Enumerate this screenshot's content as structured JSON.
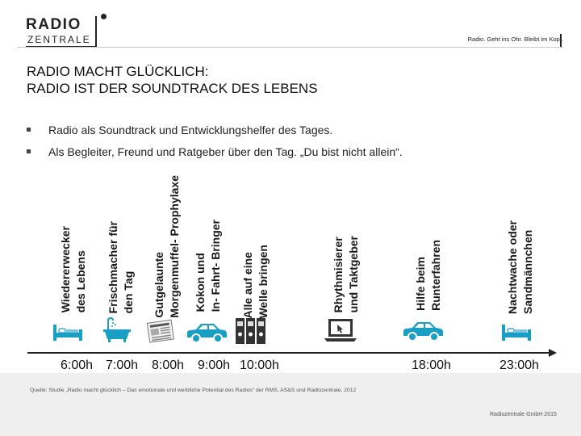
{
  "header": {
    "logo_top": "RADIO",
    "logo_bottom": "ZENTRALE",
    "tagline": "Radio. Geht ins Ohr. Bleibt im Kopf."
  },
  "title": {
    "line1": "RADIO MACHT GLÜCKLICH:",
    "line2": "RADIO IST DER SOUNDTRACK DES LEBENS"
  },
  "bullets": [
    "Radio als Soundtrack und Entwicklungshelfer des Tages.",
    "Als Begleiter, Freund und Ratgeber über den Tag. „Du bist nicht allein“."
  ],
  "timeline": {
    "labels": [
      "Wiedererwecker des Lebens",
      "Frischmacher für den Tag",
      "Gutgelaunte Morgenmuffel- Prophylaxe",
      "Kokon und In- Fahrt- Bringer",
      "Alle auf eine Welle bringen",
      "Rhythmisierer und Taktgeber",
      "Hilfe beim Runterfahren",
      "Nachtwache oder Sandmännchen"
    ],
    "label_lines": [
      [
        "Wiedererwecker",
        "des Lebens"
      ],
      [
        "Frischmacher für",
        "den Tag"
      ],
      [
        "Gutgelaunte",
        "Morgenmuffel- Prophylaxe"
      ],
      [
        "Kokon und",
        "In- Fahrt- Bringer"
      ],
      [
        "Alle auf eine",
        "Welle bringen"
      ],
      [
        "Rhythmisierer",
        "und Taktgeber"
      ],
      [
        "Hilfe beim",
        "Runterfahren"
      ],
      [
        "Nachtwache oder",
        "Sandmännchen"
      ]
    ],
    "times": [
      "6:00h",
      "7:00h",
      "8:00h",
      "9:00h",
      "10:00h",
      "18:00h",
      "23:00h"
    ],
    "icons": [
      "bed-icon",
      "bathtub-icon",
      "newspaper-icon",
      "car-icon",
      "binders-icon",
      "laptop-icon",
      "car-icon",
      "bed-icon"
    ]
  },
  "footer": {
    "source": "Quelle: Studie „Radio macht glücklich – Das emotionale und werbliche Potential des Radios“ der RMS, AS&S und Radiozentrale, 2012",
    "copyright": "Radiozentrale GmbH 2015"
  },
  "colors": {
    "accent_teal": "#1a9fc4",
    "text": "#1a1a1a",
    "footer_bg": "#efefef"
  }
}
